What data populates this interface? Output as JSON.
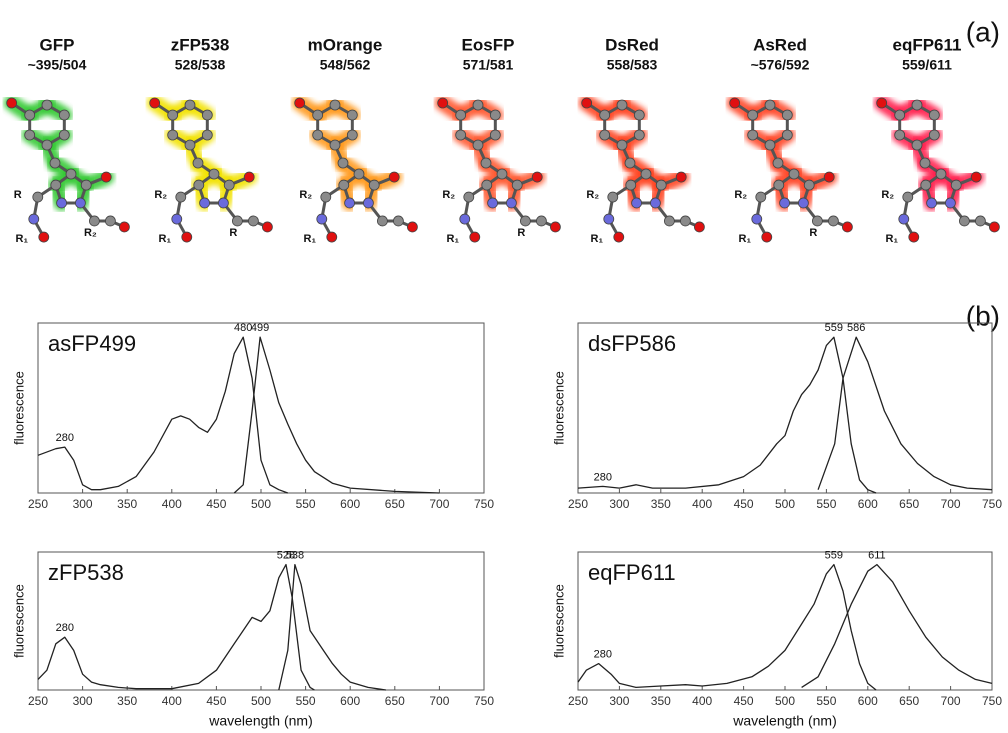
{
  "panel_labels": [
    "(a)",
    "(b)"
  ],
  "proteins": [
    {
      "name": "GFP",
      "wavelengths": "~395/504",
      "glow": "#35c935",
      "groups": [
        "R",
        "R₁",
        "R₂"
      ]
    },
    {
      "name": "zFP538",
      "wavelengths": "528/538",
      "glow": "#f2e200",
      "groups": [
        "R₂",
        "R₁",
        "R"
      ]
    },
    {
      "name": "mOrange",
      "wavelengths": "548/562",
      "glow": "#ff9a1e",
      "groups": [
        "R₂",
        "R₁"
      ]
    },
    {
      "name": "EosFP",
      "wavelengths": "571/581",
      "glow": "#ff5a32",
      "groups": [
        "R₂",
        "R₁",
        "R"
      ]
    },
    {
      "name": "DsRed",
      "wavelengths": "558/583",
      "glow": "#ff4420",
      "groups": [
        "R₂",
        "R₁"
      ]
    },
    {
      "name": "AsRed",
      "wavelengths": "~576/592",
      "glow": "#ff4a2a",
      "groups": [
        "R₂",
        "R₁",
        "R"
      ]
    },
    {
      "name": "eqFP611",
      "wavelengths": "559/611",
      "glow": "#ff2050",
      "groups": [
        "R₂",
        "R₁"
      ]
    }
  ],
  "chart_data": [
    {
      "type": "line",
      "title": "asFP499",
      "ylabel": "fluorescence",
      "xlim": [
        250,
        750
      ],
      "xticks": [
        250,
        300,
        350,
        400,
        450,
        500,
        550,
        600,
        650,
        700,
        750
      ],
      "ylim": [
        0,
        1
      ],
      "series": [
        {
          "color": "#222222",
          "x": [
            250,
            270,
            280,
            290,
            300,
            310,
            320,
            340,
            360,
            380,
            400,
            410,
            420,
            430,
            440,
            450,
            460,
            470,
            480,
            490,
            500,
            510,
            520,
            530
          ],
          "values": [
            0.23,
            0.27,
            0.28,
            0.2,
            0.05,
            0.02,
            0.02,
            0.04,
            0.1,
            0.25,
            0.45,
            0.47,
            0.45,
            0.4,
            0.37,
            0.45,
            0.62,
            0.85,
            0.95,
            0.7,
            0.2,
            0.05,
            0.02,
            0
          ]
        },
        {
          "color": "#222222",
          "x": [
            470,
            480,
            490,
            499,
            510,
            520,
            530,
            540,
            550,
            560,
            580,
            600,
            650,
            700
          ],
          "values": [
            0,
            0.05,
            0.5,
            0.95,
            0.75,
            0.55,
            0.42,
            0.3,
            0.2,
            0.13,
            0.06,
            0.03,
            0.01,
            0
          ]
        }
      ],
      "annotations": [
        {
          "label": "280",
          "x": 280
        },
        {
          "label": "480",
          "x": 480
        },
        {
          "label": "499",
          "x": 499
        }
      ]
    },
    {
      "type": "line",
      "title": "dsFP586",
      "ylabel": "fluorescence",
      "xlim": [
        250,
        750
      ],
      "xticks": [
        250,
        300,
        350,
        400,
        450,
        500,
        550,
        600,
        650,
        700,
        750
      ],
      "ylim": [
        0,
        1
      ],
      "series": [
        {
          "color": "#222222",
          "x": [
            250,
            280,
            300,
            320,
            340,
            380,
            420,
            450,
            470,
            490,
            500,
            510,
            520,
            530,
            540,
            550,
            559,
            570,
            580,
            590,
            600,
            610
          ],
          "values": [
            0.03,
            0.04,
            0.03,
            0.05,
            0.03,
            0.03,
            0.05,
            0.1,
            0.17,
            0.3,
            0.35,
            0.5,
            0.6,
            0.66,
            0.75,
            0.9,
            0.95,
            0.7,
            0.3,
            0.08,
            0.02,
            0
          ]
        },
        {
          "color": "#222222",
          "x": [
            540,
            560,
            570,
            586,
            600,
            620,
            640,
            660,
            680,
            700,
            720,
            750
          ],
          "values": [
            0.02,
            0.3,
            0.7,
            0.95,
            0.8,
            0.5,
            0.3,
            0.18,
            0.1,
            0.05,
            0.03,
            0.02
          ]
        }
      ],
      "annotations": [
        {
          "label": "280",
          "x": 280
        },
        {
          "label": "559",
          "x": 559
        },
        {
          "label": "586",
          "x": 586
        }
      ]
    },
    {
      "type": "line",
      "title": "zFP538",
      "ylabel": "fluorescence",
      "xlabel": "wavelength (nm)",
      "xlim": [
        250,
        750
      ],
      "xticks": [
        250,
        300,
        350,
        400,
        450,
        500,
        550,
        600,
        650,
        700,
        750
      ],
      "ylim": [
        0,
        1
      ],
      "series": [
        {
          "color": "#222222",
          "x": [
            250,
            260,
            270,
            280,
            290,
            300,
            310,
            320,
            340,
            360,
            400,
            430,
            450,
            470,
            490,
            500,
            510,
            520,
            528,
            535,
            545,
            555,
            560
          ],
          "values": [
            0.08,
            0.15,
            0.35,
            0.4,
            0.3,
            0.12,
            0.06,
            0.04,
            0.02,
            0.01,
            0.01,
            0.05,
            0.15,
            0.35,
            0.55,
            0.52,
            0.6,
            0.85,
            0.95,
            0.7,
            0.15,
            0.02,
            0
          ]
        },
        {
          "color": "#222222",
          "x": [
            520,
            530,
            538,
            545,
            555,
            570,
            580,
            590,
            600,
            620,
            640
          ],
          "values": [
            0,
            0.3,
            0.95,
            0.8,
            0.45,
            0.3,
            0.2,
            0.12,
            0.06,
            0.02,
            0
          ]
        }
      ],
      "annotations": [
        {
          "label": "280",
          "x": 280
        },
        {
          "label": "528",
          "x": 528
        },
        {
          "label": "538",
          "x": 538
        }
      ]
    },
    {
      "type": "line",
      "title": "eqFP611",
      "ylabel": "fluorescence",
      "xlabel": "wavelength (nm)",
      "xlim": [
        250,
        750
      ],
      "xticks": [
        250,
        300,
        350,
        400,
        450,
        500,
        550,
        600,
        650,
        700,
        750
      ],
      "ylim": [
        0,
        1
      ],
      "series": [
        {
          "color": "#222222",
          "x": [
            250,
            260,
            275,
            290,
            300,
            320,
            350,
            380,
            400,
            430,
            460,
            480,
            500,
            520,
            535,
            550,
            559,
            570,
            580,
            590,
            600,
            610
          ],
          "values": [
            0.06,
            0.15,
            0.2,
            0.12,
            0.05,
            0.02,
            0.03,
            0.04,
            0.03,
            0.05,
            0.1,
            0.18,
            0.3,
            0.5,
            0.65,
            0.88,
            0.95,
            0.75,
            0.45,
            0.2,
            0.05,
            0
          ]
        },
        {
          "color": "#222222",
          "x": [
            520,
            540,
            560,
            580,
            600,
            611,
            630,
            650,
            670,
            690,
            710,
            730,
            750
          ],
          "values": [
            0.02,
            0.1,
            0.35,
            0.65,
            0.9,
            0.95,
            0.82,
            0.6,
            0.4,
            0.25,
            0.15,
            0.08,
            0.05
          ]
        }
      ],
      "annotations": [
        {
          "label": "280",
          "x": 280
        },
        {
          "label": "559",
          "x": 559
        },
        {
          "label": "611",
          "x": 611
        }
      ]
    }
  ]
}
